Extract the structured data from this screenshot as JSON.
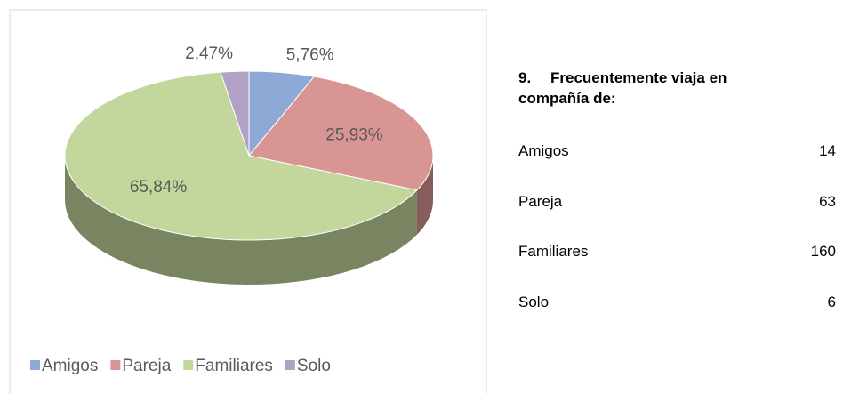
{
  "chart_data": {
    "type": "pie",
    "categories": [
      "Amigos",
      "Pareja",
      "Familiares",
      "Solo"
    ],
    "values": [
      5.76,
      25.93,
      65.84,
      2.47
    ],
    "value_labels": [
      "5,76%",
      "25,93%",
      "65,84%",
      "2,47%"
    ],
    "colors": [
      "#8ea9d6",
      "#d99594",
      "#c3d69b",
      "#b2a1c7"
    ],
    "legend": "bottom"
  },
  "table": {
    "number": "9.",
    "title_lines": [
      "Frecuentemente viaja en",
      "compañía de:"
    ],
    "rows": [
      [
        "Amigos",
        "14"
      ],
      [
        "Pareja",
        "63"
      ],
      [
        "Familiares",
        "160"
      ],
      [
        "Solo",
        "6"
      ]
    ]
  }
}
